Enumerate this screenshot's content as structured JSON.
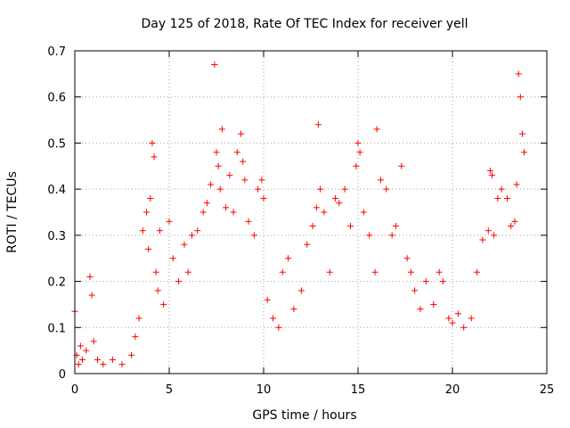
{
  "chart_data": {
    "type": "scatter",
    "title": "Day 125 of 2018, Rate Of TEC Index for receiver yell",
    "xlabel": "GPS time / hours",
    "ylabel": "ROTI / TECUs",
    "xlim": [
      0,
      25
    ],
    "ylim": [
      0,
      0.7
    ],
    "xticks": [
      "0",
      "5",
      "10",
      "15",
      "20",
      "25"
    ],
    "yticks": [
      "0",
      "0.1",
      "0.2",
      "0.3",
      "0.4",
      "0.5",
      "0.6",
      "0.7"
    ],
    "grid": true,
    "marker": "+",
    "color": "#ff0000",
    "series": [
      {
        "name": "ROTI",
        "x": [
          0.0,
          0.1,
          0.2,
          0.3,
          0.4,
          0.6,
          0.8,
          0.9,
          1.0,
          1.2,
          1.5,
          2.0,
          2.5,
          3.0,
          3.2,
          3.4,
          3.6,
          3.8,
          3.9,
          4.0,
          4.1,
          4.2,
          4.3,
          4.4,
          4.5,
          4.7,
          5.0,
          5.2,
          5.5,
          5.8,
          6.0,
          6.2,
          6.5,
          6.8,
          7.0,
          7.2,
          7.4,
          7.5,
          7.6,
          7.7,
          7.8,
          8.0,
          8.2,
          8.4,
          8.6,
          8.8,
          8.9,
          9.0,
          9.2,
          9.5,
          9.7,
          9.9,
          10.0,
          10.2,
          10.5,
          10.8,
          11.0,
          11.3,
          11.6,
          12.0,
          12.3,
          12.6,
          12.8,
          12.9,
          13.0,
          13.2,
          13.5,
          13.8,
          14.0,
          14.3,
          14.6,
          14.9,
          15.0,
          15.1,
          15.3,
          15.6,
          15.9,
          16.0,
          16.2,
          16.5,
          16.8,
          17.0,
          17.3,
          17.6,
          17.8,
          18.0,
          18.3,
          18.6,
          19.0,
          19.3,
          19.5,
          19.8,
          20.0,
          20.3,
          20.6,
          21.0,
          21.3,
          21.6,
          21.9,
          22.0,
          22.1,
          22.2,
          22.4,
          22.6,
          22.9,
          23.1,
          23.3,
          23.4,
          23.5,
          23.6,
          23.7,
          23.8
        ],
        "y": [
          0.135,
          0.04,
          0.02,
          0.06,
          0.03,
          0.05,
          0.21,
          0.17,
          0.07,
          0.03,
          0.02,
          0.03,
          0.02,
          0.04,
          0.08,
          0.12,
          0.31,
          0.35,
          0.27,
          0.38,
          0.5,
          0.47,
          0.22,
          0.18,
          0.31,
          0.15,
          0.33,
          0.25,
          0.2,
          0.28,
          0.22,
          0.3,
          0.31,
          0.35,
          0.37,
          0.41,
          0.67,
          0.48,
          0.45,
          0.4,
          0.53,
          0.36,
          0.43,
          0.35,
          0.48,
          0.52,
          0.46,
          0.42,
          0.33,
          0.3,
          0.4,
          0.42,
          0.38,
          0.16,
          0.12,
          0.1,
          0.22,
          0.25,
          0.14,
          0.18,
          0.28,
          0.32,
          0.36,
          0.54,
          0.4,
          0.35,
          0.22,
          0.38,
          0.37,
          0.4,
          0.32,
          0.45,
          0.5,
          0.48,
          0.35,
          0.3,
          0.22,
          0.53,
          0.42,
          0.4,
          0.3,
          0.32,
          0.45,
          0.25,
          0.22,
          0.18,
          0.14,
          0.2,
          0.15,
          0.22,
          0.2,
          0.12,
          0.11,
          0.13,
          0.1,
          0.12,
          0.22,
          0.29,
          0.31,
          0.44,
          0.43,
          0.3,
          0.38,
          0.4,
          0.38,
          0.32,
          0.33,
          0.41,
          0.65,
          0.6,
          0.52,
          0.48
        ]
      }
    ]
  }
}
